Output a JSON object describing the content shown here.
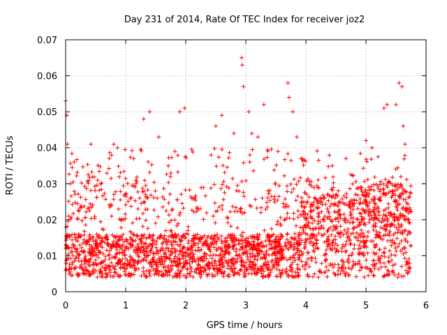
{
  "chart_data": {
    "type": "scatter",
    "title": "Day 231 of 2014, Rate Of TEC Index for receiver joz2",
    "xlabel": "GPS time / hours",
    "ylabel": "ROTI / TECUs",
    "xlim": [
      0,
      6
    ],
    "ylim": [
      0,
      0.07
    ],
    "grid": true,
    "x_ticks": [
      0,
      1,
      2,
      3,
      4,
      5,
      6
    ],
    "y_ticks": [
      0,
      0.01,
      0.02,
      0.03,
      0.04,
      0.05,
      0.06,
      0.07
    ],
    "x_tick_labels": [
      "0",
      "1",
      "2",
      "3",
      "4",
      "5",
      "6"
    ],
    "y_tick_labels": [
      "0",
      "0.01",
      "0.02",
      "0.03",
      "0.04",
      "0.05",
      "0.06",
      "0.07"
    ],
    "marker": "+",
    "marker_color": "#ff0000",
    "series": [
      {
        "name": "joz2",
        "x_range": [
          0,
          5.75
        ],
        "baseline_range": [
          0.004,
          0.015
        ],
        "notable_points": [
          [
            0.0,
            0.053
          ],
          [
            0.02,
            0.049
          ],
          [
            0.03,
            0.041
          ],
          [
            0.05,
            0.021
          ],
          [
            0.08,
            0.03
          ],
          [
            0.42,
            0.041
          ],
          [
            0.8,
            0.041
          ],
          [
            1.3,
            0.048
          ],
          [
            1.4,
            0.05
          ],
          [
            1.55,
            0.043
          ],
          [
            1.9,
            0.05
          ],
          [
            1.98,
            0.051
          ],
          [
            2.5,
            0.046
          ],
          [
            2.6,
            0.049
          ],
          [
            2.8,
            0.044
          ],
          [
            2.93,
            0.065
          ],
          [
            2.94,
            0.063
          ],
          [
            2.96,
            0.057
          ],
          [
            3.05,
            0.05
          ],
          [
            3.1,
            0.044
          ],
          [
            3.2,
            0.043
          ],
          [
            3.3,
            0.052
          ],
          [
            3.7,
            0.058
          ],
          [
            3.72,
            0.054
          ],
          [
            3.78,
            0.05
          ],
          [
            3.85,
            0.043
          ],
          [
            5.0,
            0.042
          ],
          [
            5.1,
            0.04
          ],
          [
            5.3,
            0.051
          ],
          [
            5.35,
            0.052
          ],
          [
            5.5,
            0.052
          ],
          [
            5.55,
            0.058
          ],
          [
            5.6,
            0.057
          ],
          [
            5.62,
            0.046
          ],
          [
            5.65,
            0.041
          ]
        ]
      }
    ]
  }
}
